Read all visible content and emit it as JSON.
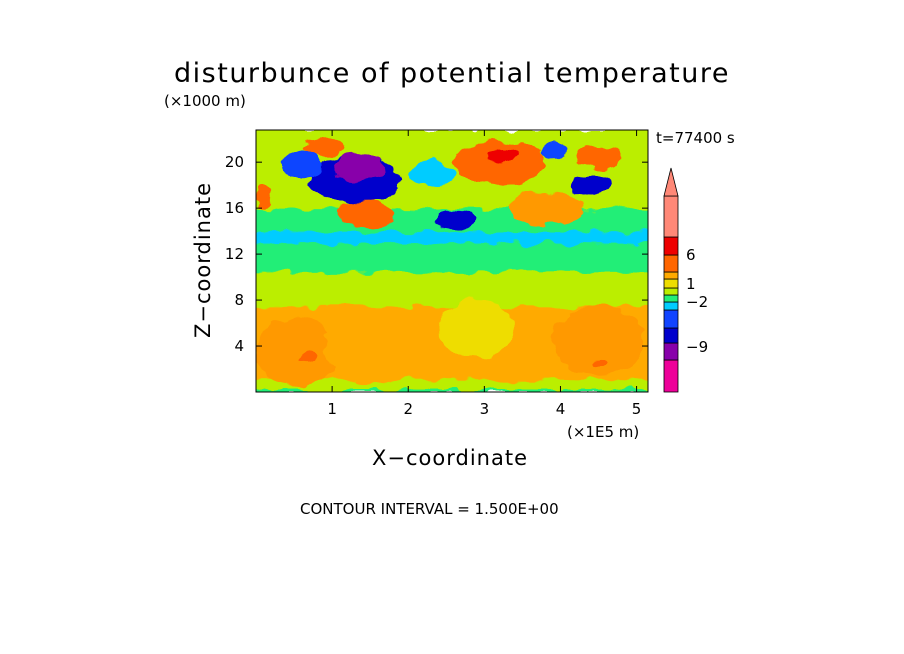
{
  "chart_data": {
    "type": "heatmap",
    "title": "disturbunce of potential temperature",
    "xlabel": "X−coordinate",
    "ylabel": "Z−coordinate",
    "x_unit": "(×1E5 m)",
    "y_unit": "(×1000 m)",
    "time_label": "t=77400 s",
    "footer": "CONTOUR INTERVAL = 1.500E+00",
    "xlim": [
      0,
      5.15
    ],
    "ylim": [
      0,
      22.8
    ],
    "x_ticks": [
      {
        "value": 1,
        "label": "1"
      },
      {
        "value": 2,
        "label": "2"
      },
      {
        "value": 3,
        "label": "3"
      },
      {
        "value": 4,
        "label": "4"
      },
      {
        "value": 5,
        "label": "5"
      }
    ],
    "y_ticks": [
      {
        "value": 4,
        "label": "4"
      },
      {
        "value": 8,
        "label": "8"
      },
      {
        "value": 12,
        "label": "12"
      },
      {
        "value": 16,
        "label": "16"
      },
      {
        "value": 20,
        "label": "20"
      }
    ],
    "colorbar": {
      "labels": [
        {
          "value": 6,
          "label": "6"
        },
        {
          "value": 1,
          "label": "1"
        },
        {
          "value": -2,
          "label": "−2"
        },
        {
          "value": -9,
          "label": "−9"
        }
      ],
      "colors": [
        "#ee0099",
        "#8800aa",
        "#0000cc",
        "#1144ff",
        "#00ccff",
        "#22ee77",
        "#bbee00",
        "#eedd00",
        "#ffaa00",
        "#ff6600",
        "#ee0000",
        "#ff8877"
      ]
    },
    "bands": [
      {
        "z": [
          0,
          0.3
        ],
        "color": "#22ee77"
      },
      {
        "z": [
          0.3,
          1.2
        ],
        "color": "#bbee00"
      },
      {
        "z": [
          1.2,
          7.5
        ],
        "color": "#ffaa00"
      },
      {
        "z": [
          7.5,
          10.5
        ],
        "color": "#bbee00"
      },
      {
        "z": [
          10.5,
          13.0
        ],
        "color": "#22ee77"
      },
      {
        "z": [
          13.0,
          14.0
        ],
        "color": "#00ccff"
      },
      {
        "z": [
          14.0,
          16.0
        ],
        "color": "#22ee77"
      },
      {
        "z": [
          16.0,
          22.8
        ],
        "color": "#bbee00"
      }
    ],
    "features": [
      {
        "x": 0.55,
        "z": 3.5,
        "rx": 0.55,
        "rz": 3.0,
        "color": "#ff9900"
      },
      {
        "x": 1.6,
        "z": 4.0,
        "rx": 0.7,
        "rz": 3.2,
        "color": "#ffaa00"
      },
      {
        "x": 4.5,
        "z": 4.5,
        "rx": 0.6,
        "rz": 3.0,
        "color": "#ff9900"
      },
      {
        "x": 2.9,
        "z": 5.5,
        "rx": 0.5,
        "rz": 2.5,
        "color": "#eedd00"
      },
      {
        "x": 0.7,
        "z": 3.0,
        "rx": 0.1,
        "rz": 0.4,
        "color": "#ff6600"
      },
      {
        "x": 4.5,
        "z": 2.5,
        "rx": 0.1,
        "rz": 0.3,
        "color": "#ff6600"
      },
      {
        "x": 1.3,
        "z": 18.5,
        "rx": 0.6,
        "rz": 2.0,
        "color": "#0000cc"
      },
      {
        "x": 1.35,
        "z": 19.5,
        "rx": 0.35,
        "rz": 1.2,
        "color": "#8800aa"
      },
      {
        "x": 0.6,
        "z": 19.8,
        "rx": 0.25,
        "rz": 1.2,
        "color": "#1144ff"
      },
      {
        "x": 3.2,
        "z": 20.0,
        "rx": 0.6,
        "rz": 1.8,
        "color": "#ff6600"
      },
      {
        "x": 3.25,
        "z": 20.5,
        "rx": 0.2,
        "rz": 0.6,
        "color": "#ee0000"
      },
      {
        "x": 1.45,
        "z": 15.5,
        "rx": 0.4,
        "rz": 1.2,
        "color": "#ff6600"
      },
      {
        "x": 4.4,
        "z": 18.0,
        "rx": 0.25,
        "rz": 0.9,
        "color": "#0000cc"
      },
      {
        "x": 4.5,
        "z": 20.5,
        "rx": 0.3,
        "rz": 1.0,
        "color": "#ff6600"
      },
      {
        "x": 3.9,
        "z": 21.0,
        "rx": 0.15,
        "rz": 0.8,
        "color": "#1144ff"
      },
      {
        "x": 2.3,
        "z": 19.0,
        "rx": 0.3,
        "rz": 1.2,
        "color": "#00ccff"
      },
      {
        "x": 0.9,
        "z": 21.3,
        "rx": 0.3,
        "rz": 0.7,
        "color": "#ff6600"
      },
      {
        "x": 2.6,
        "z": 15.0,
        "rx": 0.25,
        "rz": 0.8,
        "color": "#0000cc"
      },
      {
        "x": 3.8,
        "z": 16.0,
        "rx": 0.5,
        "rz": 1.4,
        "color": "#ff9900"
      },
      {
        "x": 0.1,
        "z": 17.0,
        "rx": 0.1,
        "rz": 1.0,
        "color": "#ff6600"
      }
    ]
  }
}
